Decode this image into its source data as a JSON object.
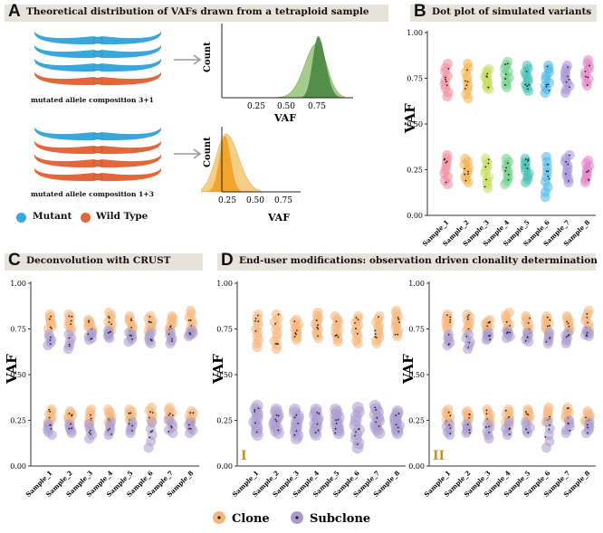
{
  "panels": {
    "A": {
      "letter": "A",
      "title": "Theoretical distribution of VAFs drawn from a tetraploid sample"
    },
    "B": {
      "letter": "B",
      "title": "Dot plot of simulated variants"
    },
    "C": {
      "letter": "C",
      "title": "Deconvolution with CRUST"
    },
    "D": {
      "letter": "D",
      "title": "End-user modifications: observation driven clonality determination"
    }
  },
  "panel_a": {
    "caption_top": "mutated allele composition 3+1",
    "caption_bottom": "mutated allele composition 1+3",
    "legend": {
      "mutant": "Mutant",
      "wild_type": "Wild Type"
    },
    "colors": {
      "mutant": "#3aa7dc",
      "wild_type": "#e2673a",
      "dark_green": "#4e8a45",
      "light_green": "#a6cc8c",
      "dark_orange": "#f2a12a",
      "light_orange": "#f6cf86"
    },
    "count_label": "Count",
    "vaf_label": "VAF",
    "ticks": [
      "0.25",
      "0.50",
      "0.75"
    ]
  },
  "dot_plots": {
    "y_label": "VAF",
    "y_ticks": [
      "0.00",
      "0.25",
      "0.50",
      "0.75",
      "1.00"
    ],
    "samples": [
      "Sample_1",
      "Sample_2",
      "Sample_3",
      "Sample_4",
      "Sample_5",
      "Sample_6",
      "Sample_7",
      "Sample_8"
    ],
    "roman_I": "I",
    "roman_II": "II"
  },
  "legend": {
    "clone": "Clone",
    "subclone": "Subclone"
  },
  "colors": {
    "clone": "#f4b77c",
    "subclone": "#a99ad0",
    "dot": "#222222"
  },
  "chart_data": [
    {
      "type": "scatter",
      "title": "Dot plot of simulated variants",
      "ylabel": "VAF",
      "ylim": [
        0,
        1
      ],
      "categories": [
        "Sample_1",
        "Sample_2",
        "Sample_3",
        "Sample_4",
        "Sample_5",
        "Sample_6",
        "Sample_7",
        "Sample_8"
      ],
      "series": [
        {
          "name": "upper cluster",
          "ranges": [
            [
              0.65,
              0.83
            ],
            [
              0.64,
              0.83
            ],
            [
              0.69,
              0.8
            ],
            [
              0.7,
              0.84
            ],
            [
              0.68,
              0.82
            ],
            [
              0.67,
              0.82
            ],
            [
              0.67,
              0.82
            ],
            [
              0.71,
              0.85
            ]
          ]
        },
        {
          "name": "lower cluster",
          "ranges": [
            [
              0.17,
              0.33
            ],
            [
              0.18,
              0.31
            ],
            [
              0.15,
              0.31
            ],
            [
              0.17,
              0.31
            ],
            [
              0.18,
              0.31
            ],
            [
              0.1,
              0.32
            ],
            [
              0.18,
              0.33
            ],
            [
              0.18,
              0.3
            ]
          ]
        }
      ]
    },
    {
      "type": "scatter",
      "title": "Deconvolution with CRUST",
      "ylabel": "VAF",
      "ylim": [
        0,
        1
      ],
      "categories": [
        "Sample_1",
        "Sample_2",
        "Sample_3",
        "Sample_4",
        "Sample_5",
        "Sample_6",
        "Sample_7",
        "Sample_8"
      ],
      "series": [
        {
          "name": "Clone",
          "ranges": [
            [
              0.75,
              0.83,
              0.24,
              0.31
            ],
            [
              0.74,
              0.83,
              0.25,
              0.3
            ],
            [
              0.74,
              0.8,
              0.23,
              0.31
            ],
            [
              0.74,
              0.84,
              0.24,
              0.31
            ],
            [
              0.73,
              0.82,
              0.25,
              0.31
            ],
            [
              0.74,
              0.82,
              0.24,
              0.32
            ],
            [
              0.74,
              0.82,
              0.25,
              0.32
            ],
            [
              0.74,
              0.85,
              0.24,
              0.3
            ]
          ]
        },
        {
          "name": "Subclone",
          "ranges": [
            [
              0.66,
              0.72,
              0.17,
              0.23
            ],
            [
              0.64,
              0.72,
              0.18,
              0.23
            ],
            [
              0.69,
              0.73,
              0.15,
              0.23
            ],
            [
              0.7,
              0.74,
              0.17,
              0.24
            ],
            [
              0.68,
              0.73,
              0.18,
              0.24
            ],
            [
              0.67,
              0.73,
              0.1,
              0.24
            ],
            [
              0.67,
              0.73,
              0.18,
              0.25
            ],
            [
              0.71,
              0.74,
              0.18,
              0.24
            ]
          ]
        }
      ]
    },
    {
      "type": "scatter",
      "title": "End-user modifications I",
      "ylabel": "VAF",
      "ylim": [
        0,
        1
      ],
      "categories": [
        "Sample_1",
        "Sample_2",
        "Sample_3",
        "Sample_4",
        "Sample_5",
        "Sample_6",
        "Sample_7",
        "Sample_8"
      ],
      "series": [
        {
          "name": "Clone",
          "ranges": [
            [
              0.65,
              0.83
            ],
            [
              0.64,
              0.83
            ],
            [
              0.69,
              0.8
            ],
            [
              0.7,
              0.84
            ],
            [
              0.68,
              0.82
            ],
            [
              0.67,
              0.82
            ],
            [
              0.67,
              0.82
            ],
            [
              0.71,
              0.85
            ]
          ]
        },
        {
          "name": "Subclone",
          "ranges": [
            [
              0.17,
              0.33
            ],
            [
              0.18,
              0.31
            ],
            [
              0.15,
              0.31
            ],
            [
              0.17,
              0.31
            ],
            [
              0.18,
              0.31
            ],
            [
              0.1,
              0.32
            ],
            [
              0.18,
              0.33
            ],
            [
              0.18,
              0.3
            ]
          ]
        }
      ]
    },
    {
      "type": "scatter",
      "title": "End-user modifications II",
      "ylabel": "VAF",
      "ylim": [
        0,
        1
      ],
      "categories": [
        "Sample_1",
        "Sample_2",
        "Sample_3",
        "Sample_4",
        "Sample_5",
        "Sample_6",
        "Sample_7",
        "Sample_8"
      ],
      "series": [
        {
          "name": "Clone",
          "ranges": [
            [
              0.75,
              0.83,
              0.24,
              0.31
            ],
            [
              0.74,
              0.83,
              0.25,
              0.3
            ],
            [
              0.74,
              0.8,
              0.23,
              0.31
            ],
            [
              0.74,
              0.84,
              0.24,
              0.31
            ],
            [
              0.73,
              0.82,
              0.25,
              0.31
            ],
            [
              0.74,
              0.82,
              0.24,
              0.32
            ],
            [
              0.74,
              0.82,
              0.25,
              0.32
            ],
            [
              0.74,
              0.85,
              0.24,
              0.3
            ]
          ]
        },
        {
          "name": "Subclone",
          "ranges": [
            [
              0.66,
              0.72,
              0.17,
              0.23
            ],
            [
              0.64,
              0.72,
              0.18,
              0.23
            ],
            [
              0.69,
              0.73,
              0.15,
              0.23
            ],
            [
              0.7,
              0.74,
              0.17,
              0.24
            ],
            [
              0.68,
              0.73,
              0.18,
              0.24
            ],
            [
              0.67,
              0.73,
              0.1,
              0.24
            ],
            [
              0.67,
              0.73,
              0.18,
              0.25
            ],
            [
              0.71,
              0.74,
              0.18,
              0.24
            ]
          ]
        }
      ]
    }
  ]
}
